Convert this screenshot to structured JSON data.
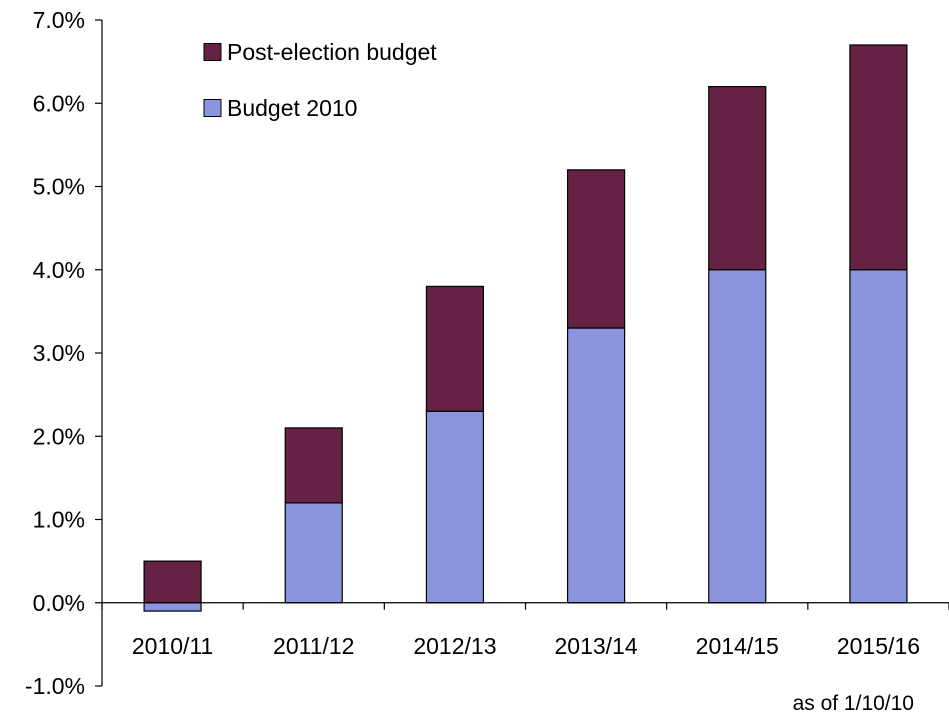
{
  "chart_data": {
    "type": "bar",
    "stacked": true,
    "categories": [
      "2010/11",
      "2011/12",
      "2012/13",
      "2013/14",
      "2014/15",
      "2015/16"
    ],
    "series": [
      {
        "name": "Budget 2010",
        "values": [
          -0.1,
          1.2,
          2.3,
          3.3,
          4.0,
          4.0
        ],
        "color": "#8A95DD"
      },
      {
        "name": "Post-election budget",
        "values": [
          0.5,
          0.9,
          1.5,
          1.9,
          2.2,
          2.7
        ],
        "color": "#662244"
      }
    ],
    "legend_order": [
      "Post-election budget",
      "Budget 2010"
    ],
    "legend_position": "top-left",
    "y_ticks": [
      "-1.0%",
      "0.0%",
      "1.0%",
      "2.0%",
      "3.0%",
      "4.0%",
      "5.0%",
      "6.0%",
      "7.0%"
    ],
    "ylim": [
      -1.0,
      7.0
    ],
    "y_unit": "%",
    "grid": false,
    "annotation": "as of 1/10/10"
  }
}
